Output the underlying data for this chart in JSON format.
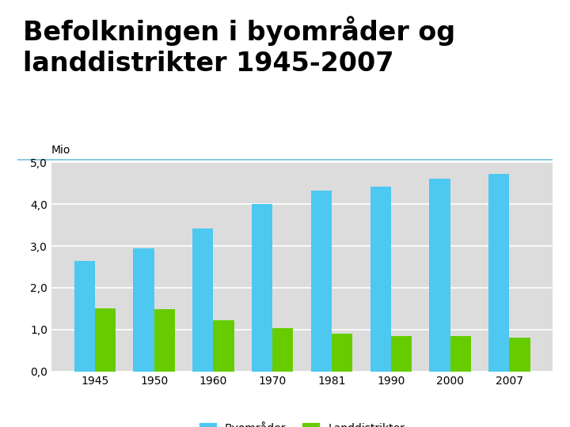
{
  "title": "Befolkningen i byområder og\nlanddistrikter 1945-2007",
  "ylabel": "Mio",
  "years": [
    "1945",
    "1950",
    "1960",
    "1970",
    "1981",
    "1990",
    "2000",
    "2007"
  ],
  "byomrader": [
    2.65,
    2.95,
    3.42,
    4.0,
    4.33,
    4.42,
    4.6,
    4.72
  ],
  "landdistrikter": [
    1.5,
    1.48,
    1.23,
    1.03,
    0.9,
    0.85,
    0.85,
    0.8
  ],
  "color_by": "#4DC8F0",
  "color_land": "#66CC00",
  "ylim": [
    0,
    5.0
  ],
  "yticks": [
    0.0,
    1.0,
    2.0,
    3.0,
    4.0,
    5.0
  ],
  "ytick_labels": [
    "0,0",
    "1,0",
    "2,0",
    "3,0",
    "4,0",
    "5,0"
  ],
  "background_color": "#DCDCDC",
  "legend_by": "Byområder",
  "legend_land": "Landdistrikter",
  "title_fontsize": 24,
  "title_color": "#000000",
  "bar_width": 0.35,
  "figure_bg": "#FFFFFF",
  "separator_color": "#88CCDD",
  "grid_color": "#FFFFFF"
}
